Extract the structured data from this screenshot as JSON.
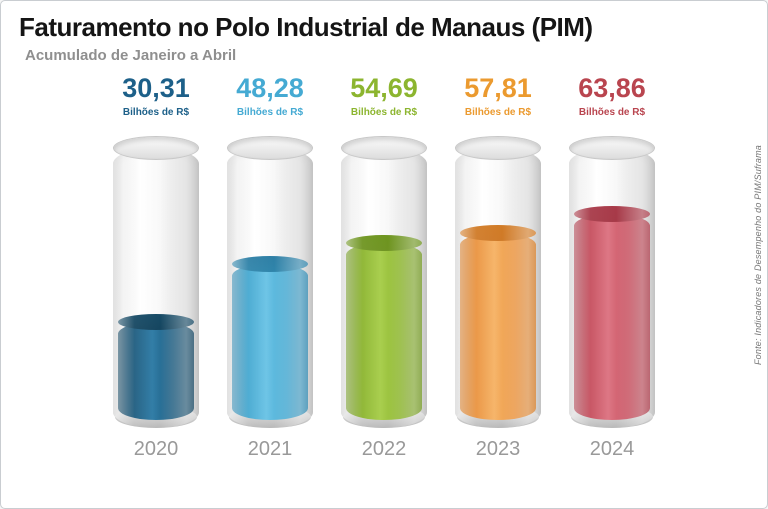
{
  "header": {
    "title": "Faturamento no Polo Industrial de Manaus (PIM)",
    "subtitle": "Acumulado de Janeiro a Abril"
  },
  "chart_data": {
    "type": "bar",
    "title": "Faturamento no Polo Industrial de Manaus (PIM)",
    "subtitle": "Acumulado de Janeiro a Abril",
    "categories": [
      "2020",
      "2021",
      "2022",
      "2023",
      "2024"
    ],
    "values": [
      30.31,
      48.28,
      54.69,
      57.81,
      63.86
    ],
    "unit": "Bilhões de R$",
    "ylim": [
      0,
      80
    ],
    "legend_position": "none",
    "grid": false,
    "source": "Fonte: Indicadores de Desempenho do PIM/Suframa",
    "series": [
      {
        "year": "2020",
        "label": "30,31",
        "value": 30.31,
        "unit": "Bilhões de R$",
        "num_color": "#1d6089",
        "fill_base": "#1f5d80",
        "fill_light": "#2f7ca6",
        "fill_dark": "#15455f",
        "fill_surface": "#174b66"
      },
      {
        "year": "2021",
        "label": "48,28",
        "value": 48.28,
        "unit": "Bilhões de R$",
        "num_color": "#45aad3",
        "fill_base": "#46a9d1",
        "fill_light": "#6cc4e6",
        "fill_dark": "#2f85ab",
        "fill_surface": "#2e7fa5"
      },
      {
        "year": "2022",
        "label": "54,69",
        "value": 54.69,
        "unit": "Bilhões de R$",
        "num_color": "#8cb52f",
        "fill_base": "#8cb52f",
        "fill_light": "#a8ce4c",
        "fill_dark": "#6f9422",
        "fill_surface": "#6e951f"
      },
      {
        "year": "2023",
        "label": "57,81",
        "value": 57.81,
        "unit": "Bilhões de R$",
        "num_color": "#eb9a2f",
        "fill_base": "#ea9440",
        "fill_light": "#f6b468",
        "fill_dark": "#cf7a28",
        "fill_surface": "#d17b26"
      },
      {
        "year": "2024",
        "label": "63,86",
        "value": 63.86,
        "unit": "Bilhões de R$",
        "num_color": "#b9454f",
        "fill_base": "#c64f5e",
        "fill_light": "#dd7583",
        "fill_dark": "#a63a48",
        "fill_surface": "#a83a49"
      }
    ]
  }
}
